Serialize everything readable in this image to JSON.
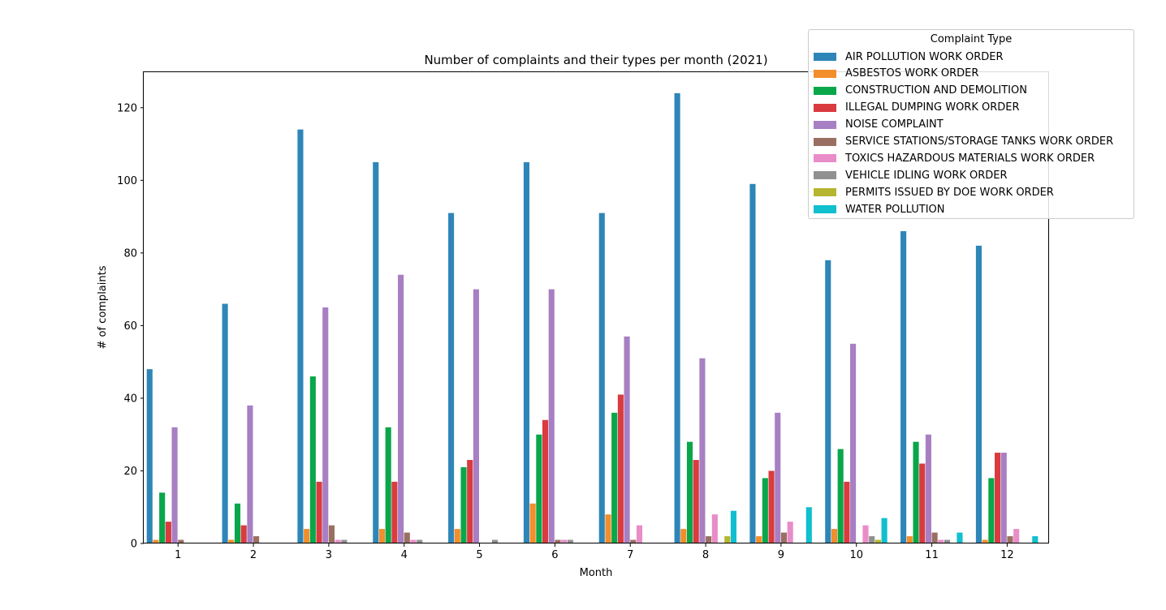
{
  "chart_data": {
    "type": "bar",
    "title": "Number of complaints and their types per month (2021)",
    "xlabel": "Month",
    "ylabel": "# of complaints",
    "ylim": [
      0,
      130
    ],
    "yticks": [
      "0",
      "20",
      "40",
      "60",
      "80",
      "100",
      "120"
    ],
    "categories": [
      "1",
      "2",
      "3",
      "4",
      "5",
      "6",
      "7",
      "8",
      "9",
      "10",
      "11",
      "12"
    ],
    "legend_title": "Complaint Type",
    "legend_position": "top-right",
    "series": [
      {
        "name": "AIR POLLUTION WORK ORDER",
        "color": "#2e86b8",
        "values": [
          48,
          66,
          114,
          105,
          91,
          105,
          91,
          124,
          99,
          78,
          86,
          82
        ]
      },
      {
        "name": "ASBESTOS WORK ORDER",
        "color": "#f28e2b",
        "values": [
          1,
          1,
          4,
          4,
          4,
          11,
          8,
          4,
          2,
          4,
          2,
          1
        ]
      },
      {
        "name": "CONSTRUCTION AND DEMOLITION",
        "color": "#0aa64a",
        "values": [
          14,
          11,
          46,
          32,
          21,
          30,
          36,
          28,
          18,
          26,
          28,
          18
        ]
      },
      {
        "name": "ILLEGAL DUMPING WORK ORDER",
        "color": "#d93b3f",
        "values": [
          6,
          5,
          17,
          17,
          23,
          34,
          41,
          23,
          20,
          17,
          22,
          25
        ]
      },
      {
        "name": "NOISE COMPLAINT",
        "color": "#a77fc2",
        "values": [
          32,
          38,
          65,
          74,
          70,
          70,
          57,
          51,
          36,
          55,
          30,
          25
        ]
      },
      {
        "name": "SERVICE STATIONS/STORAGE TANKS WORK ORDER",
        "color": "#9a6f62",
        "values": [
          1,
          2,
          5,
          3,
          0,
          1,
          1,
          2,
          3,
          0,
          3,
          2
        ]
      },
      {
        "name": "TOXICS HAZARDOUS MATERIALS WORK ORDER",
        "color": "#e98cc8",
        "values": [
          0,
          0,
          1,
          1,
          0,
          1,
          5,
          8,
          6,
          5,
          1,
          4
        ]
      },
      {
        "name": "VEHICLE IDLING WORK ORDER",
        "color": "#909090",
        "values": [
          0,
          0,
          1,
          1,
          1,
          1,
          0,
          0,
          0,
          2,
          1,
          0
        ]
      },
      {
        "name": "PERMITS ISSUED BY DOE WORK ORDER",
        "color": "#b5b530",
        "values": [
          0,
          0,
          0,
          0,
          0,
          0,
          0,
          2,
          0,
          1,
          0,
          0
        ]
      },
      {
        "name": "WATER POLLUTION",
        "color": "#11bfcf",
        "values": [
          0,
          0,
          0,
          0,
          0,
          0,
          0,
          9,
          10,
          7,
          3,
          2
        ]
      }
    ]
  }
}
